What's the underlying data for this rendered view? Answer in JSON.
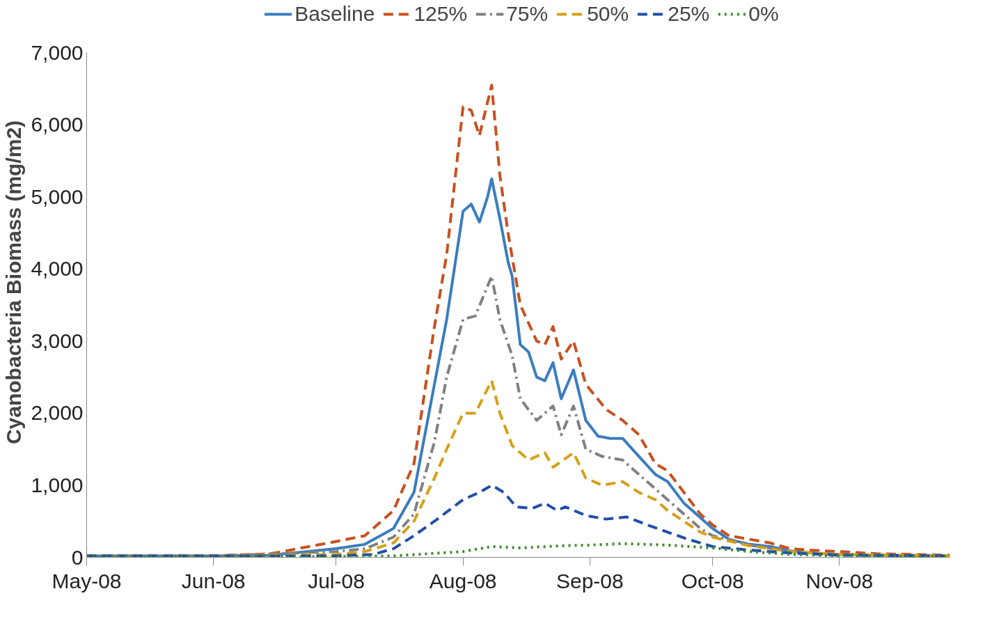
{
  "chart_data": {
    "type": "line",
    "ylabel": "Cyanobacteria Biomass (mg/m2)",
    "legend": "top",
    "grid": false,
    "marker": "none",
    "xlim": [
      "2008-05-01",
      "2008-11-28"
    ],
    "xticks": [
      {
        "value": "2008-05-01",
        "label": "May-08"
      },
      {
        "value": "2008-06-01",
        "label": "Jun-08"
      },
      {
        "value": "2008-07-01",
        "label": "Jul-08"
      },
      {
        "value": "2008-08-01",
        "label": "Aug-08"
      },
      {
        "value": "2008-09-01",
        "label": "Sep-08"
      },
      {
        "value": "2008-10-01",
        "label": "Oct-08"
      },
      {
        "value": "2008-11-01",
        "label": "Nov-08"
      }
    ],
    "ylim": [
      0,
      7000
    ],
    "yticks": [
      0,
      {
        "value": 1000,
        "label": "1,000"
      },
      {
        "value": 2000,
        "label": "2,000"
      },
      {
        "value": 3000,
        "label": "3,000"
      },
      {
        "value": 4000,
        "label": "4,000"
      },
      {
        "value": 5000,
        "label": "5,000"
      },
      {
        "value": 6000,
        "label": "6,000"
      },
      {
        "value": 7000,
        "label": "7,000"
      }
    ],
    "series": [
      {
        "name": "Baseline",
        "color": "#3a7dbf",
        "line_style": "solid",
        "x": [
          "2008-05-01",
          "2008-06-01",
          "2008-06-15",
          "2008-07-01",
          "2008-07-08",
          "2008-07-15",
          "2008-07-20",
          "2008-07-25",
          "2008-07-28",
          "2008-08-01",
          "2008-08-03",
          "2008-08-05",
          "2008-08-07",
          "2008-08-08",
          "2008-08-10",
          "2008-08-12",
          "2008-08-13",
          "2008-08-15",
          "2008-08-17",
          "2008-08-19",
          "2008-08-21",
          "2008-08-23",
          "2008-08-25",
          "2008-08-28",
          "2008-08-31",
          "2008-09-03",
          "2008-09-06",
          "2008-09-09",
          "2008-09-13",
          "2008-09-17",
          "2008-09-20",
          "2008-09-24",
          "2008-09-28",
          "2008-10-01",
          "2008-10-05",
          "2008-10-10",
          "2008-10-15",
          "2008-10-20",
          "2008-10-25",
          "2008-11-01",
          "2008-11-10",
          "2008-11-28"
        ],
        "values": [
          20,
          20,
          30,
          120,
          180,
          400,
          900,
          2400,
          3300,
          4800,
          4900,
          4650,
          5000,
          5250,
          4700,
          4100,
          3900,
          2950,
          2850,
          2500,
          2450,
          2700,
          2200,
          2600,
          1900,
          1680,
          1650,
          1650,
          1400,
          1150,
          1050,
          750,
          550,
          400,
          250,
          180,
          150,
          90,
          60,
          40,
          30,
          20
        ]
      },
      {
        "name": "125%",
        "color": "#c8501e",
        "line_style": "dashed",
        "x": [
          "2008-05-01",
          "2008-06-01",
          "2008-06-15",
          "2008-07-01",
          "2008-07-08",
          "2008-07-15",
          "2008-07-20",
          "2008-07-25",
          "2008-07-28",
          "2008-08-01",
          "2008-08-03",
          "2008-08-05",
          "2008-08-08",
          "2008-08-10",
          "2008-08-12",
          "2008-08-15",
          "2008-08-19",
          "2008-08-21",
          "2008-08-23",
          "2008-08-25",
          "2008-08-28",
          "2008-08-31",
          "2008-09-05",
          "2008-09-09",
          "2008-09-13",
          "2008-09-17",
          "2008-09-20",
          "2008-09-24",
          "2008-09-28",
          "2008-10-01",
          "2008-10-05",
          "2008-10-10",
          "2008-10-15",
          "2008-10-20",
          "2008-10-25",
          "2008-11-01",
          "2008-11-10",
          "2008-11-28"
        ],
        "values": [
          20,
          20,
          50,
          220,
          300,
          650,
          1300,
          3200,
          4200,
          6250,
          6200,
          5850,
          6550,
          5300,
          4500,
          3500,
          3000,
          2950,
          3200,
          2750,
          3000,
          2400,
          2050,
          1900,
          1700,
          1300,
          1200,
          900,
          600,
          450,
          300,
          250,
          200,
          120,
          100,
          80,
          50,
          30
        ]
      },
      {
        "name": "75%",
        "color": "#808080",
        "line_style": "dashdot",
        "x": [
          "2008-05-01",
          "2008-06-01",
          "2008-07-01",
          "2008-07-08",
          "2008-07-15",
          "2008-07-20",
          "2008-07-25",
          "2008-07-28",
          "2008-08-01",
          "2008-08-04",
          "2008-08-08",
          "2008-08-10",
          "2008-08-13",
          "2008-08-15",
          "2008-08-19",
          "2008-08-23",
          "2008-08-25",
          "2008-08-28",
          "2008-08-31",
          "2008-09-04",
          "2008-09-09",
          "2008-09-13",
          "2008-09-17",
          "2008-09-20",
          "2008-09-24",
          "2008-09-28",
          "2008-10-01",
          "2008-10-10",
          "2008-10-20",
          "2008-11-01",
          "2008-11-28"
        ],
        "values": [
          20,
          20,
          80,
          120,
          280,
          600,
          1600,
          2500,
          3300,
          3350,
          3900,
          3300,
          2800,
          2200,
          1900,
          2100,
          1700,
          2100,
          1500,
          1400,
          1350,
          1150,
          950,
          800,
          600,
          400,
          300,
          170,
          80,
          40,
          20
        ]
      },
      {
        "name": "50%",
        "color": "#d4a017",
        "line_style": "dashed",
        "x": [
          "2008-05-01",
          "2008-06-01",
          "2008-07-01",
          "2008-07-08",
          "2008-07-15",
          "2008-07-20",
          "2008-07-25",
          "2008-07-28",
          "2008-08-01",
          "2008-08-04",
          "2008-08-08",
          "2008-08-10",
          "2008-08-13",
          "2008-08-17",
          "2008-08-21",
          "2008-08-23",
          "2008-08-28",
          "2008-08-31",
          "2008-09-04",
          "2008-09-09",
          "2008-09-13",
          "2008-09-17",
          "2008-09-20",
          "2008-09-24",
          "2008-09-28",
          "2008-10-01",
          "2008-10-10",
          "2008-10-20",
          "2008-11-01",
          "2008-11-28"
        ],
        "values": [
          20,
          20,
          40,
          80,
          200,
          500,
          1100,
          1500,
          2000,
          2000,
          2450,
          2000,
          1550,
          1350,
          1450,
          1250,
          1450,
          1100,
          1000,
          1050,
          900,
          800,
          650,
          500,
          350,
          280,
          160,
          80,
          40,
          20
        ]
      },
      {
        "name": "25%",
        "color": "#1f4ea8",
        "line_style": "dashed",
        "x": [
          "2008-05-01",
          "2008-07-01",
          "2008-07-10",
          "2008-07-15",
          "2008-07-20",
          "2008-07-25",
          "2008-08-01",
          "2008-08-05",
          "2008-08-08",
          "2008-08-11",
          "2008-08-14",
          "2008-08-18",
          "2008-08-21",
          "2008-08-24",
          "2008-08-26",
          "2008-08-31",
          "2008-09-05",
          "2008-09-10",
          "2008-09-15",
          "2008-09-20",
          "2008-09-25",
          "2008-10-01",
          "2008-10-10",
          "2008-10-20",
          "2008-11-01",
          "2008-11-28"
        ],
        "values": [
          20,
          20,
          40,
          120,
          300,
          500,
          800,
          900,
          1000,
          900,
          700,
          680,
          750,
          650,
          700,
          580,
          530,
          560,
          450,
          350,
          250,
          150,
          100,
          60,
          30,
          20
        ]
      },
      {
        "name": "0%",
        "color": "#3a8c2a",
        "line_style": "dotted",
        "x": [
          "2008-05-01",
          "2008-07-01",
          "2008-07-15",
          "2008-08-01",
          "2008-08-08",
          "2008-08-15",
          "2008-08-25",
          "2008-09-01",
          "2008-09-09",
          "2008-09-20",
          "2008-10-01",
          "2008-10-10",
          "2008-10-20",
          "2008-11-01",
          "2008-11-28"
        ],
        "values": [
          10,
          10,
          20,
          80,
          150,
          130,
          160,
          170,
          190,
          170,
          130,
          80,
          40,
          20,
          10
        ]
      }
    ]
  }
}
